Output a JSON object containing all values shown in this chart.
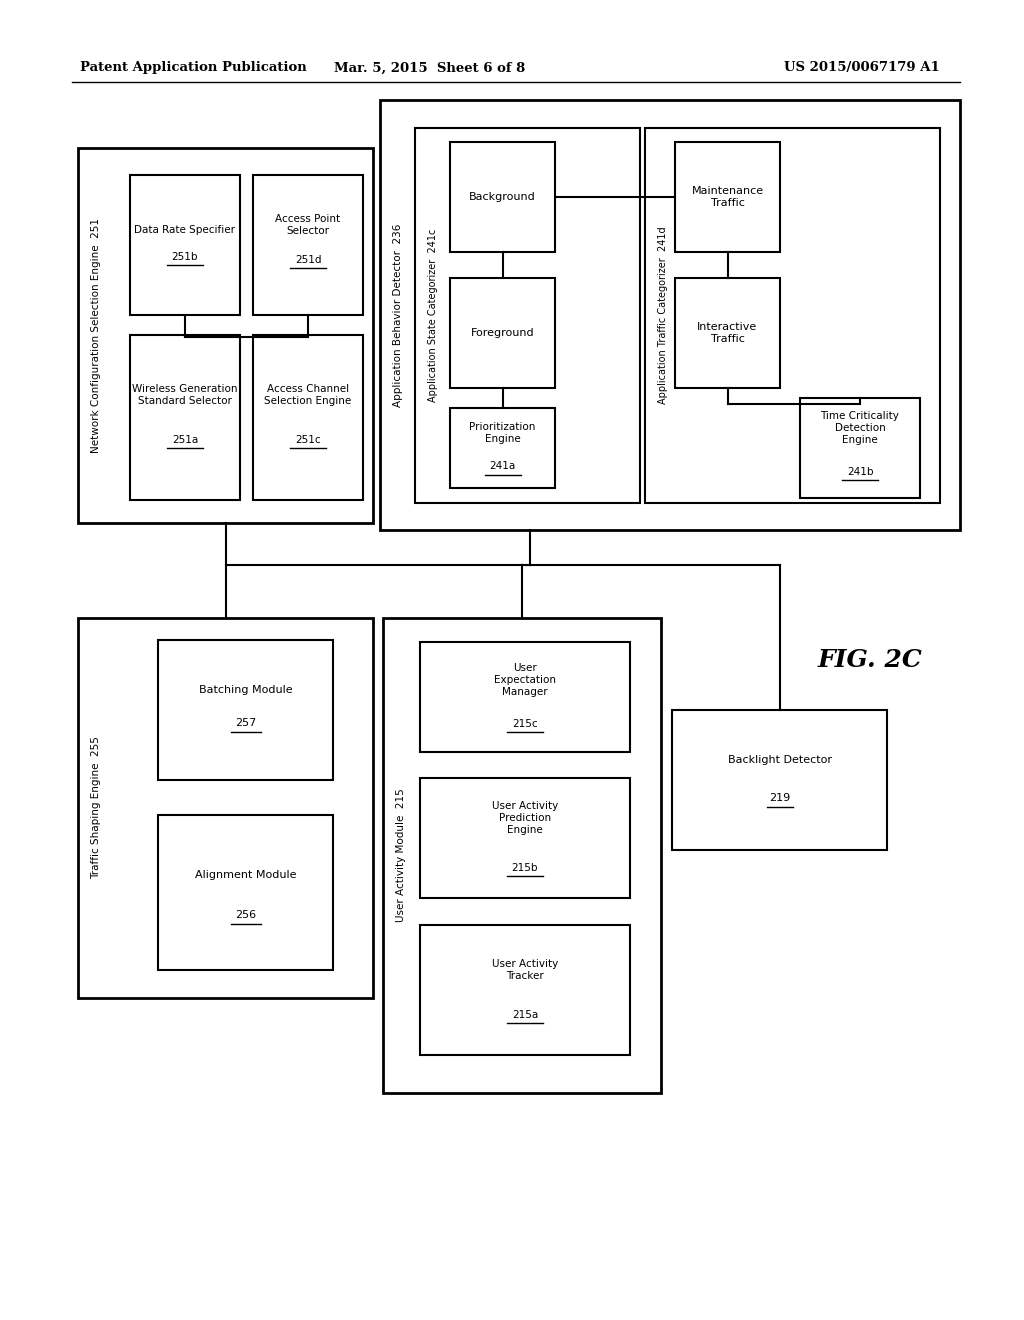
{
  "bg_color": "#ffffff",
  "header_left": "Patent Application Publication",
  "header_mid": "Mar. 5, 2015  Sheet 6 of 8",
  "header_right": "US 2015/0067179 A1",
  "fig_label": "FIG. 2C"
}
